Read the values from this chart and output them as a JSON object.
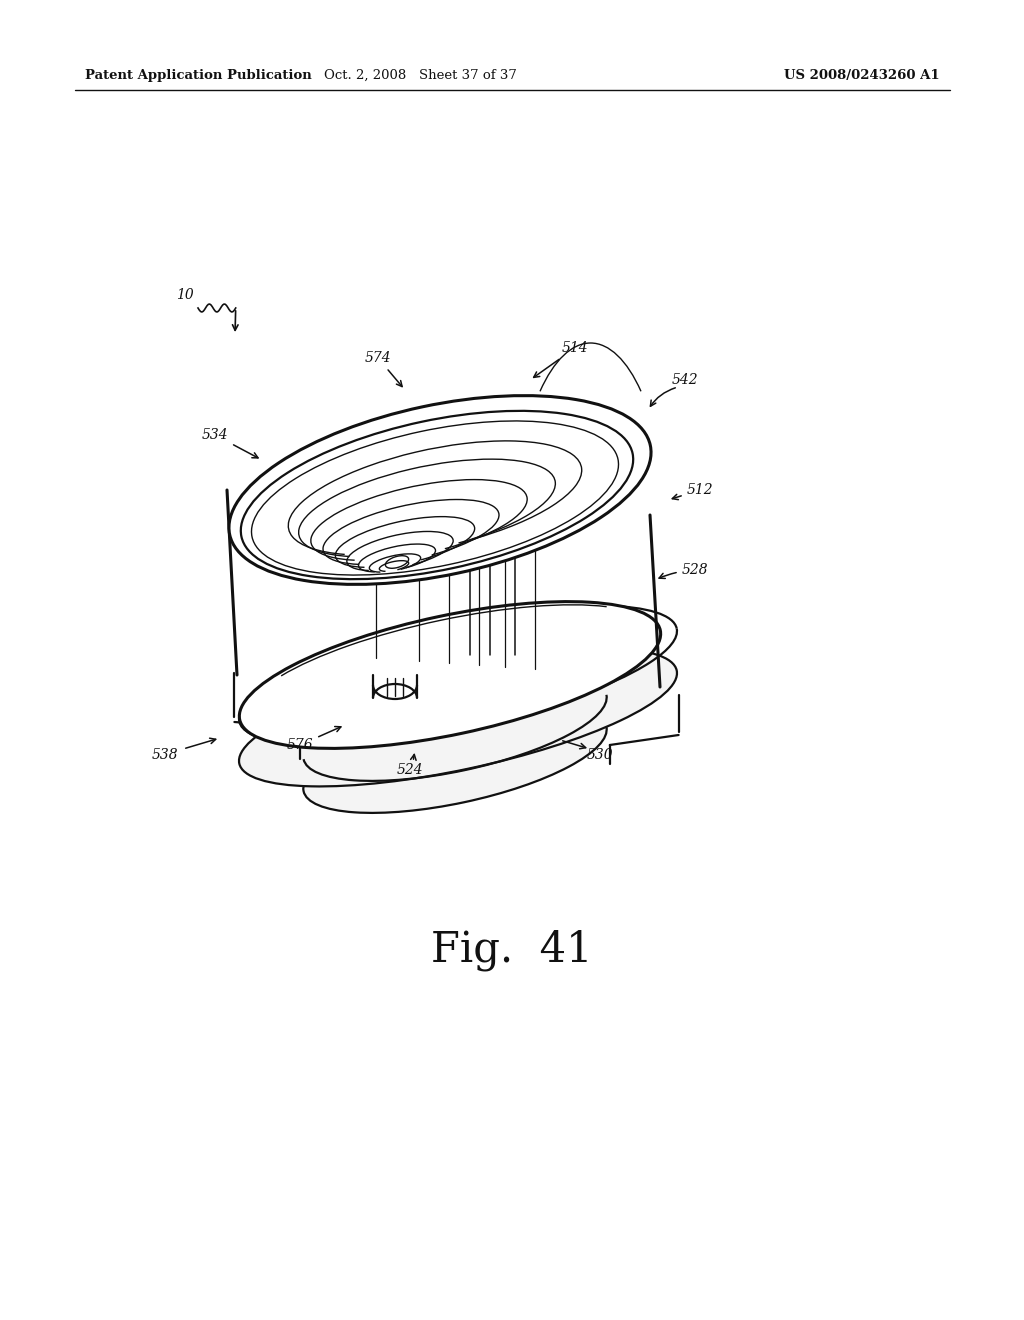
{
  "bg_color": "#ffffff",
  "header_left": "Patent Application Publication",
  "header_mid": "Oct. 2, 2008   Sheet 37 of 37",
  "header_right": "US 2008/0243260 A1",
  "fig_label": "Fig.  41",
  "line_color": "#111111",
  "fill_light": "#f4f4f4",
  "fill_white": "#ffffff"
}
